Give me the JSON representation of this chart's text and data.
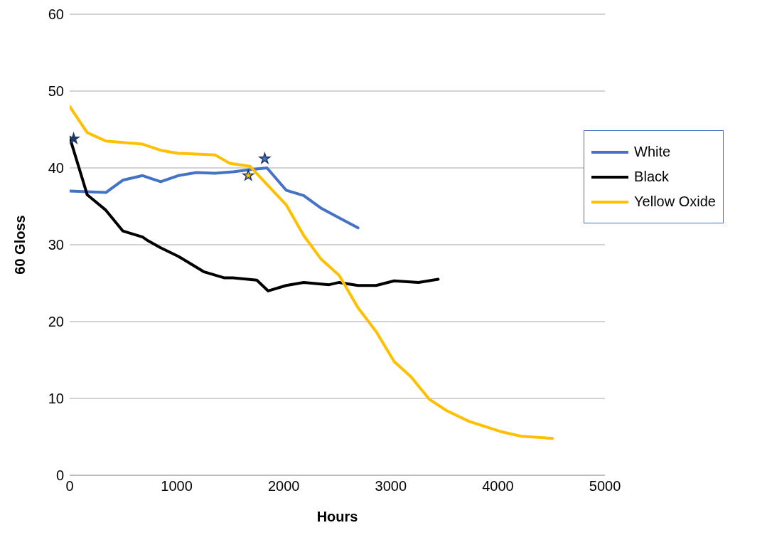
{
  "chart_data": {
    "type": "line",
    "xlabel": "Hours",
    "ylabel": "60 Gloss",
    "xlim": [
      0,
      5000
    ],
    "xticks": [
      0,
      1000,
      2000,
      3000,
      4000,
      5000
    ],
    "ylim": [
      0,
      60
    ],
    "yticks": [
      0,
      10,
      20,
      30,
      40,
      50,
      60
    ],
    "grid": "y",
    "legend": "right",
    "marker": "none",
    "line_style": "solid",
    "series": [
      {
        "name": "White",
        "color": "#4472c4",
        "x": [
          0,
          338,
          496,
          681,
          850,
          1014,
          1183,
          1357,
          1526,
          1695,
          1843,
          2022,
          2186,
          2344,
          2518,
          2693
        ],
        "values": [
          37.0,
          36.8,
          38.4,
          39.0,
          38.2,
          39.0,
          39.4,
          39.3,
          39.5,
          39.8,
          40.0,
          37.1,
          36.4,
          34.8,
          33.5,
          32.2
        ]
      },
      {
        "name": "Black",
        "color": "#000000",
        "x": [
          0,
          164,
          338,
          496,
          681,
          734,
          850,
          1014,
          1251,
          1441,
          1526,
          1748,
          1853,
          2022,
          2186,
          2423,
          2518,
          2693,
          2862,
          3031,
          3258,
          3442
        ],
        "values": [
          44.0,
          36.5,
          34.5,
          31.8,
          31.0,
          30.5,
          29.6,
          28.5,
          26.5,
          25.7,
          25.7,
          25.4,
          24.0,
          24.7,
          25.1,
          24.8,
          25.1,
          24.7,
          24.7,
          25.3,
          25.1,
          25.5
        ]
      },
      {
        "name": "Yellow Oxide",
        "color": "#ffc000",
        "x": [
          0,
          164,
          338,
          496,
          681,
          850,
          1014,
          1357,
          1494,
          1685,
          1853,
          2022,
          2186,
          2344,
          2518,
          2693,
          2862,
          3031,
          3189,
          3358,
          3522,
          3733,
          4023,
          4208,
          4509
        ],
        "values": [
          48.0,
          44.6,
          43.5,
          43.3,
          43.1,
          42.3,
          41.9,
          41.7,
          40.6,
          40.2,
          37.7,
          35.2,
          31.2,
          28.2,
          26.0,
          21.8,
          18.7,
          14.8,
          12.8,
          9.9,
          8.4,
          7.0,
          5.7,
          5.1,
          4.8
        ]
      },
      {
        "type": "scatter",
        "marker": "star",
        "color": "#1f3864",
        "x": [
          37
        ],
        "values": [
          43.8
        ]
      },
      {
        "type": "scatter",
        "marker": "star",
        "color": "#4472c4",
        "x": [
          1822
        ],
        "values": [
          41.2
        ]
      },
      {
        "type": "scatter",
        "marker": "star",
        "color": "#ffc000",
        "x": [
          1668
        ],
        "values": [
          39.0
        ]
      }
    ]
  }
}
